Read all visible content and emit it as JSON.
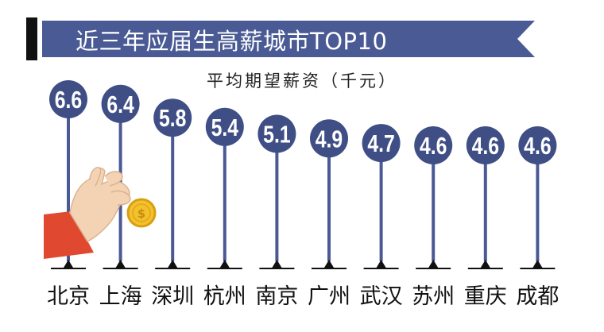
{
  "header": {
    "title": "近三年应届生高薪城市TOP10",
    "subtitle": "平均期望薪资（千元）"
  },
  "colors": {
    "banner": "#4a5a94",
    "marker": "#3f4f86",
    "stem": "#4a5a94",
    "marker_text": "#ffffff",
    "accent_bar": "#111111",
    "cuff": "#e0492f",
    "hand": "#f4d3b5",
    "coin": "#f2c22e"
  },
  "chart_data": {
    "type": "bar",
    "categories": [
      "北京",
      "上海",
      "深圳",
      "杭州",
      "南京",
      "广州",
      "武汉",
      "苏州",
      "重庆",
      "成都"
    ],
    "values": [
      6.6,
      6.4,
      5.8,
      5.4,
      5.1,
      4.9,
      4.7,
      4.6,
      4.6,
      4.6
    ],
    "value_labels": [
      "6.6",
      "6.4",
      "5.8",
      "5.4",
      "5.1",
      "4.9",
      "4.7",
      "4.6",
      "4.6",
      "4.6"
    ],
    "title": "近三年应届生高薪城市TOP10",
    "subtitle": "平均期望薪资（千元）",
    "xlabel": "",
    "ylabel": "",
    "grid": false,
    "legend": "none"
  },
  "illustration": {
    "hand_icon": "hand-holding-coin-icon",
    "coin_icon": "dollar-coin-icon"
  }
}
